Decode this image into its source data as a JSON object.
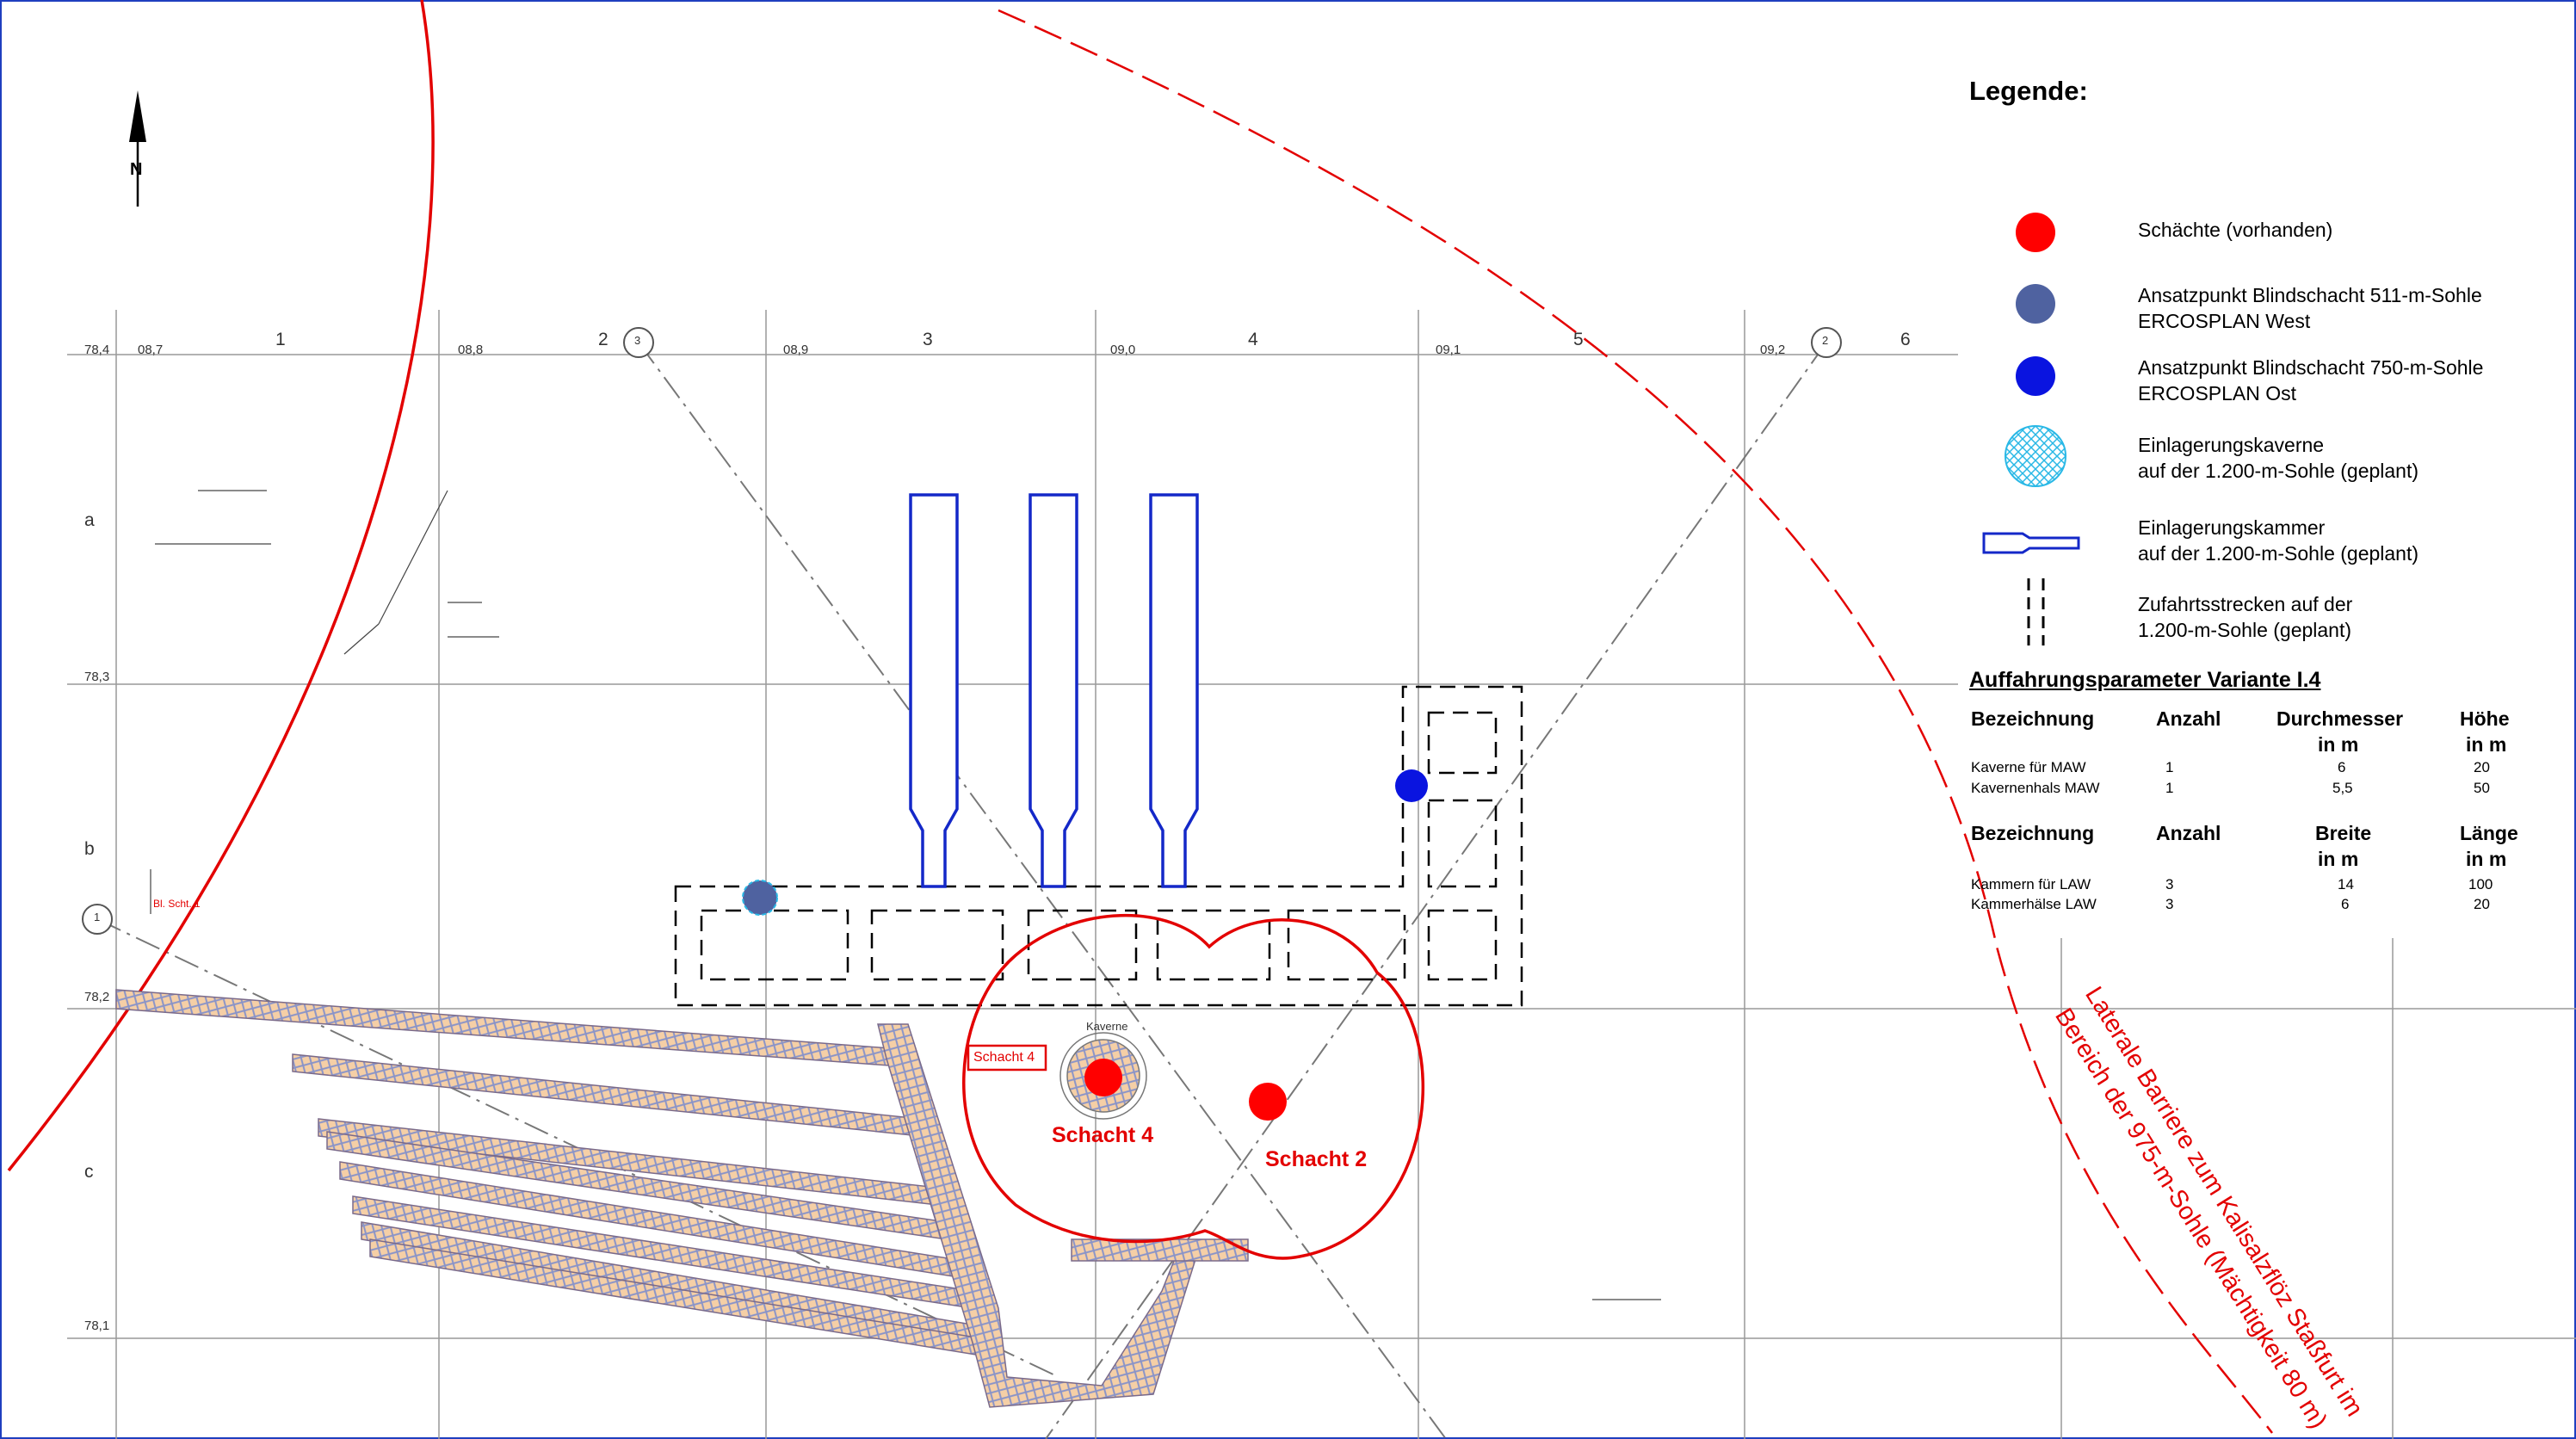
{
  "legend": {
    "title": "Legende:",
    "items": [
      {
        "line1": "Schächte (vorhanden)",
        "line2": "",
        "symbol": "red-dot",
        "color": "#ff0000"
      },
      {
        "line1": "Ansatzpunkt Blindschacht 511-m-Sohle",
        "line2": "ERCOSPLAN West",
        "symbol": "slate-dot",
        "color": "#4f62a0"
      },
      {
        "line1": "Ansatzpunkt Blindschacht 750-m-Sohle",
        "line2": "ERCOSPLAN Ost",
        "symbol": "blue-dot",
        "color": "#0a14e0"
      },
      {
        "line1": "Einlagerungskaverne",
        "line2": "auf der 1.200-m-Sohle (geplant)",
        "symbol": "hatched-circle",
        "color": "#29b8e6"
      },
      {
        "line1": "Einlagerungskammer",
        "line2": "auf der 1.200-m-Sohle (geplant)",
        "symbol": "chamber",
        "color": "#1428c8"
      },
      {
        "line1": "Zufahrtsstrecken auf der",
        "line2": "1.200-m-Sohle (geplant)",
        "symbol": "dashed",
        "color": "#000000"
      }
    ]
  },
  "parameters": {
    "title": "Auffahrungsparameter Variante I.4",
    "table1": {
      "headers": [
        [
          "Bezeichnung",
          ""
        ],
        [
          "Anzahl",
          ""
        ],
        [
          "Durchmesser",
          "in m"
        ],
        [
          "Höhe",
          "in m"
        ]
      ],
      "rows": [
        [
          "Kaverne für MAW",
          "1",
          "6",
          "20"
        ],
        [
          "Kavernenhals MAW",
          "1",
          "5,5",
          "50"
        ]
      ]
    },
    "table2": {
      "headers": [
        [
          "Bezeichnung",
          ""
        ],
        [
          "Anzahl",
          ""
        ],
        [
          "Breite",
          "in m"
        ],
        [
          "Länge",
          "in m"
        ]
      ],
      "rows": [
        [
          "Kammern für LAW",
          "3",
          "14",
          "100"
        ],
        [
          "Kammerhälse LAW",
          "3",
          "6",
          "20"
        ]
      ]
    }
  },
  "map": {
    "north_label": "N",
    "shafts": [
      {
        "label": "Schacht 4",
        "color": "#ff0000"
      },
      {
        "label": "Schacht 2",
        "color": "#ff0000"
      }
    ],
    "schacht4_box": "Schacht 4",
    "kaverne_label": "Kaverne",
    "barrier_line1": "Laterale Barriere zum Kalisalzflöz Staßfurt im",
    "barrier_line2": "Bereich der 975-m-Sohle (Mächtigkeit 80 m)",
    "grid_columns": [
      "1",
      "2",
      "3",
      "4",
      "5",
      "6"
    ],
    "grid_rows": [
      "a",
      "b",
      "c"
    ],
    "grid_top_labels": [
      "78,4",
      "08,7",
      "08,8",
      "08,9",
      "09,0",
      "09,1",
      "09,2"
    ],
    "grid_left_labels": [
      "78,3",
      "78,2",
      "78,1"
    ],
    "circle_markers": [
      "3",
      "2",
      "1"
    ],
    "shaft_box_left": "Bl. Scht. 1"
  },
  "colors": {
    "red": "#e30000",
    "blue": "#1428c8",
    "border": "#1f3fbf",
    "hatch": "#f2c8a0"
  }
}
